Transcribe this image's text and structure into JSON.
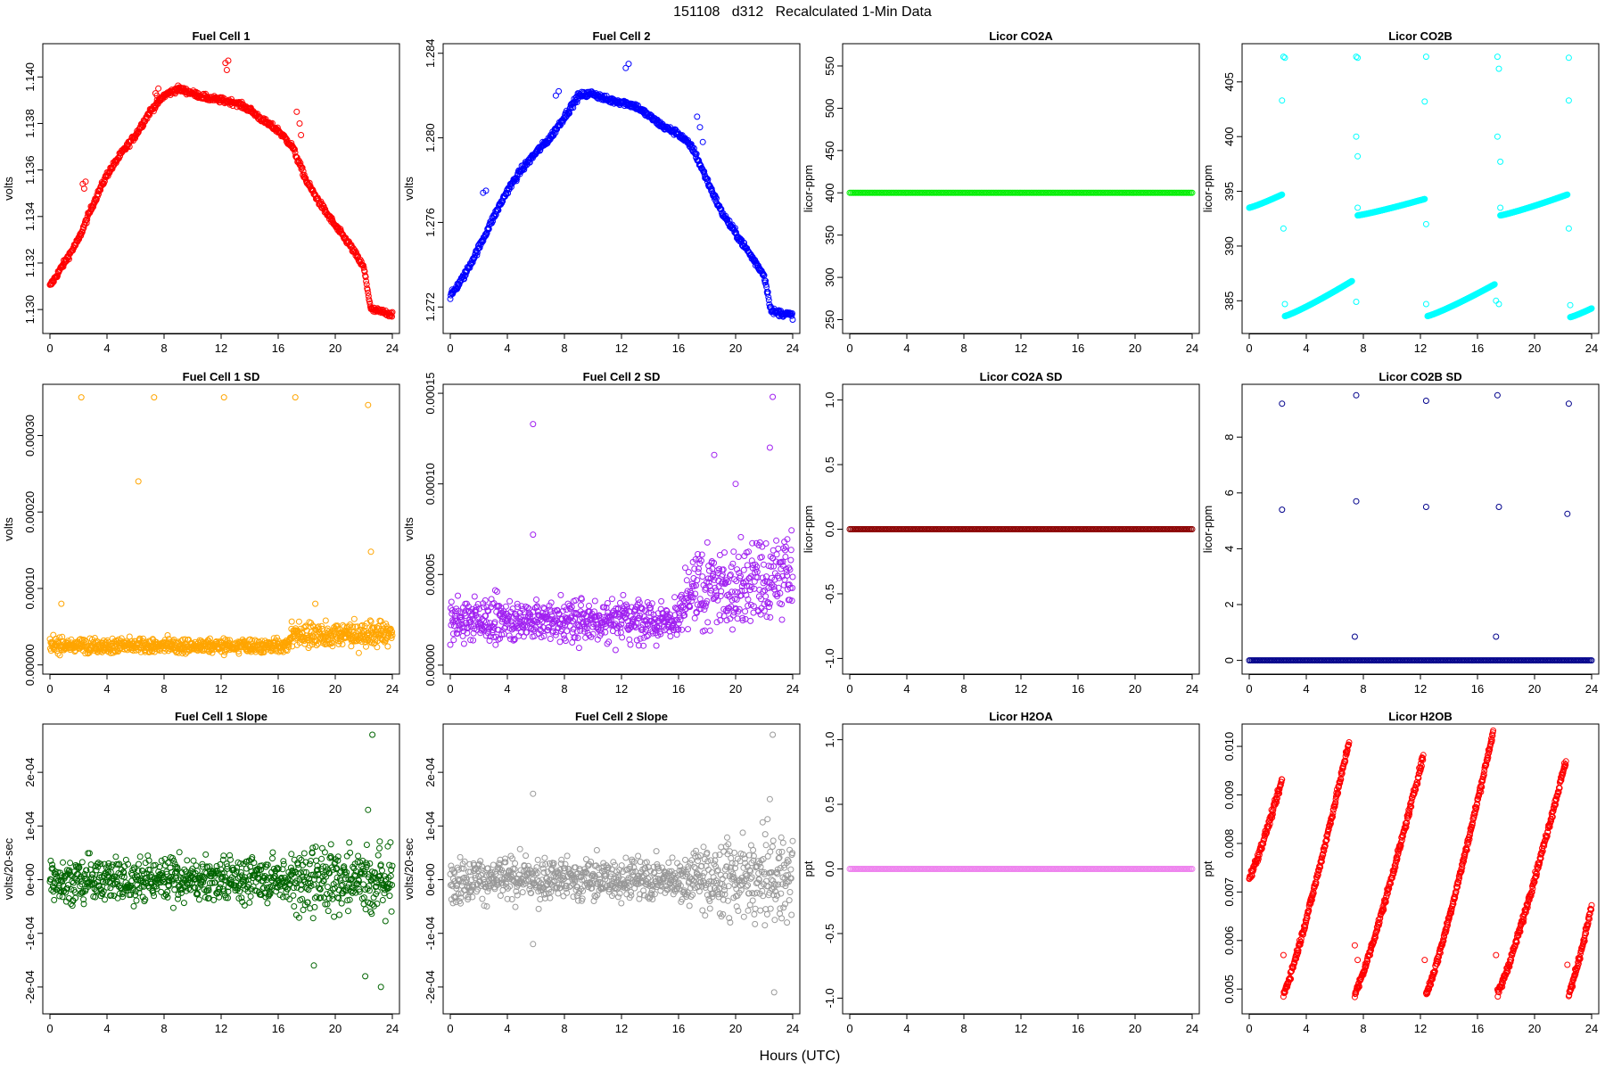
{
  "figure": {
    "title": "151108   d312   Recalculated 1-Min Data",
    "xlabel": "Hours (UTC)"
  },
  "chart_data": [
    {
      "id": "fc1",
      "type": "scatter",
      "title": "Fuel Cell 1",
      "ylabel": "volts",
      "color": "#ff0000",
      "xlim": [
        0,
        24
      ],
      "ylim": [
        1.1292,
        1.1412
      ],
      "xticks": [
        0,
        4,
        8,
        12,
        16,
        20,
        24
      ],
      "yticks": [
        1.13,
        1.132,
        1.134,
        1.136,
        1.138,
        1.14
      ],
      "yticklabels": [
        "1.130",
        "1.132",
        "1.134",
        "1.136",
        "1.138",
        "1.140"
      ],
      "curve": [
        [
          0,
          1.131
        ],
        [
          1,
          1.132
        ],
        [
          2,
          1.133
        ],
        [
          3,
          1.1345
        ],
        [
          4,
          1.1358
        ],
        [
          5,
          1.1367
        ],
        [
          6,
          1.1375
        ],
        [
          7,
          1.1385
        ],
        [
          8,
          1.1392
        ],
        [
          9,
          1.1395
        ],
        [
          10,
          1.1393
        ],
        [
          11,
          1.1391
        ],
        [
          12,
          1.139
        ],
        [
          13,
          1.1389
        ],
        [
          14,
          1.1386
        ],
        [
          15,
          1.1381
        ],
        [
          16,
          1.1377
        ],
        [
          17,
          1.137
        ],
        [
          18,
          1.1355
        ],
        [
          19,
          1.1345
        ],
        [
          20,
          1.1336
        ],
        [
          21,
          1.1328
        ],
        [
          22,
          1.1318
        ],
        [
          22.5,
          1.13
        ],
        [
          24,
          1.1298
        ]
      ],
      "spread": 0.00025,
      "extras": [
        [
          2.3,
          1.1354
        ],
        [
          2.5,
          1.1355
        ],
        [
          2.4,
          1.1352
        ],
        [
          7.4,
          1.1393
        ],
        [
          7.6,
          1.1395
        ],
        [
          7.5,
          1.1392
        ],
        [
          12.3,
          1.1406
        ],
        [
          12.5,
          1.1407
        ],
        [
          12.4,
          1.1403
        ],
        [
          17.3,
          1.1385
        ],
        [
          17.5,
          1.138
        ],
        [
          17.6,
          1.1375
        ]
      ]
    },
    {
      "id": "fc2",
      "type": "scatter",
      "title": "Fuel Cell 2",
      "ylabel": "volts",
      "color": "#0000ff",
      "xlim": [
        0,
        24
      ],
      "ylim": [
        1.271,
        1.2842
      ],
      "xticks": [
        0,
        4,
        8,
        12,
        16,
        20,
        24
      ],
      "yticks": [
        1.272,
        1.276,
        1.28,
        1.284
      ],
      "yticklabels": [
        "1.272",
        "1.276",
        "1.280",
        "1.284"
      ],
      "curve": [
        [
          0,
          1.2725
        ],
        [
          1,
          1.2735
        ],
        [
          2,
          1.2748
        ],
        [
          3,
          1.2762
        ],
        [
          4,
          1.2775
        ],
        [
          5,
          1.2785
        ],
        [
          6,
          1.2793
        ],
        [
          7,
          1.28
        ],
        [
          8,
          1.281
        ],
        [
          9,
          1.282
        ],
        [
          10,
          1.2821
        ],
        [
          11,
          1.2818
        ],
        [
          12,
          1.2817
        ],
        [
          13,
          1.2815
        ],
        [
          14,
          1.281
        ],
        [
          15,
          1.2805
        ],
        [
          16,
          1.2802
        ],
        [
          17,
          1.2795
        ],
        [
          18,
          1.278
        ],
        [
          19,
          1.2765
        ],
        [
          20,
          1.2755
        ],
        [
          21,
          1.2745
        ],
        [
          22,
          1.2735
        ],
        [
          22.5,
          1.2718
        ],
        [
          24,
          1.2716
        ]
      ],
      "spread": 0.0003,
      "extras": [
        [
          2.3,
          1.2774
        ],
        [
          2.5,
          1.2775
        ],
        [
          7.4,
          1.282
        ],
        [
          7.6,
          1.2822
        ],
        [
          12.3,
          1.2833
        ],
        [
          12.5,
          1.2835
        ],
        [
          17.3,
          1.281
        ],
        [
          17.5,
          1.2805
        ],
        [
          17.7,
          1.2798
        ]
      ]
    },
    {
      "id": "co2a",
      "type": "scatter",
      "title": "Licor CO2A",
      "ylabel": "licor-ppm",
      "color": "#00ee00",
      "xlim": [
        0,
        24
      ],
      "ylim": [
        240,
        570
      ],
      "xticks": [
        0,
        4,
        8,
        12,
        16,
        20,
        24
      ],
      "yticks": [
        250,
        300,
        350,
        400,
        450,
        500,
        550
      ],
      "yticklabels": [
        "250",
        "300",
        "350",
        "400",
        "450",
        "500",
        "550"
      ],
      "constant": 400
    },
    {
      "id": "co2b",
      "type": "scatter",
      "title": "Licor CO2B",
      "ylabel": "licor-ppm",
      "color": "#00ffff",
      "xlim": [
        0,
        24
      ],
      "ylim": [
        382.5,
        408
      ],
      "xticks": [
        0,
        4,
        8,
        12,
        16,
        20,
        24
      ],
      "yticks": [
        385,
        390,
        395,
        400,
        405
      ],
      "yticklabels": [
        "385",
        "390",
        "395",
        "400",
        "405"
      ],
      "segments": [
        [
          0,
          393.5,
          2.3,
          394.7
        ],
        [
          2.5,
          383.6,
          7.2,
          386.8
        ],
        [
          7.6,
          392.8,
          12.3,
          394.3
        ],
        [
          12.5,
          383.6,
          17.2,
          386.5
        ],
        [
          17.6,
          392.8,
          22.3,
          394.7
        ],
        [
          22.5,
          383.5,
          24,
          384.3
        ]
      ],
      "extras": [
        [
          2.4,
          407.3
        ],
        [
          2.5,
          407.2
        ],
        [
          2.3,
          403.3
        ],
        [
          2.4,
          391.6
        ],
        [
          2.5,
          384.7
        ],
        [
          7.5,
          407.3
        ],
        [
          7.6,
          407.2
        ],
        [
          7.5,
          400.0
        ],
        [
          7.6,
          398.2
        ],
        [
          7.6,
          393.5
        ],
        [
          7.5,
          384.9
        ],
        [
          12.4,
          407.3
        ],
        [
          12.3,
          403.2
        ],
        [
          12.4,
          392.0
        ],
        [
          12.4,
          384.7
        ],
        [
          17.4,
          407.3
        ],
        [
          17.5,
          406.2
        ],
        [
          17.4,
          400.0
        ],
        [
          17.6,
          397.7
        ],
        [
          17.6,
          393.5
        ],
        [
          17.3,
          385.0
        ],
        [
          17.5,
          384.7
        ],
        [
          22.4,
          407.2
        ],
        [
          22.4,
          403.3
        ],
        [
          22.4,
          391.6
        ],
        [
          22.5,
          384.6
        ]
      ]
    },
    {
      "id": "fc1sd",
      "type": "scatter",
      "title": "Fuel Cell 1 SD",
      "ylabel": "volts",
      "color": "#ffa500",
      "xlim": [
        0,
        24
      ],
      "ylim": [
        -5e-06,
        0.00036
      ],
      "xticks": [
        0,
        4,
        8,
        12,
        16,
        20,
        24
      ],
      "yticks": [
        0,
        0.0001,
        0.0002,
        0.0003
      ],
      "yticklabels": [
        "0.00000",
        "0.00010",
        "0.00020",
        "0.00030"
      ],
      "noise": [
        [
          0,
          2.5e-05,
          1.2e-05
        ],
        [
          16.5,
          2.5e-05,
          1.2e-05
        ],
        [
          17,
          4e-05,
          2e-05
        ],
        [
          24,
          4e-05,
          2e-05
        ]
      ],
      "extras": [
        [
          2.2,
          0.00035
        ],
        [
          7.3,
          0.00035
        ],
        [
          12.2,
          0.00035
        ],
        [
          17.2,
          0.00035
        ],
        [
          22.3,
          0.00034
        ],
        [
          6.2,
          0.00024
        ],
        [
          22.5,
          0.000148
        ],
        [
          0.8,
          8e-05
        ],
        [
          18.6,
          8e-05
        ]
      ]
    },
    {
      "id": "fc2sd",
      "type": "scatter",
      "title": "Fuel Cell 2 SD",
      "ylabel": "volts",
      "color": "#a020f0",
      "xlim": [
        0,
        24
      ],
      "ylim": [
        -2e-06,
        0.000152
      ],
      "xticks": [
        0,
        4,
        8,
        12,
        16,
        20,
        24
      ],
      "yticks": [
        0,
        5e-05,
        0.0001,
        0.00015
      ],
      "yticklabels": [
        "0.00000",
        "0.00005",
        "0.00010",
        "0.00015"
      ],
      "noise": [
        [
          0,
          2.5e-05,
          1.5e-05
        ],
        [
          16,
          2.5e-05,
          1.5e-05
        ],
        [
          17,
          4e-05,
          2.5e-05
        ],
        [
          24,
          5e-05,
          3e-05
        ]
      ],
      "extras": [
        [
          5.8,
          0.000133
        ],
        [
          5.8,
          7.2e-05
        ],
        [
          22.6,
          0.000148
        ],
        [
          22.4,
          0.00012
        ],
        [
          18.5,
          0.000116
        ],
        [
          20,
          0.0001
        ]
      ]
    },
    {
      "id": "co2asd",
      "type": "scatter",
      "title": "Licor CO2A SD",
      "ylabel": "licor-ppm",
      "color": "#8b0000",
      "xlim": [
        0,
        24
      ],
      "ylim": [
        -1.08,
        1.08
      ],
      "xticks": [
        0,
        4,
        8,
        12,
        16,
        20,
        24
      ],
      "yticks": [
        -1.0,
        -0.5,
        0.0,
        0.5,
        1.0
      ],
      "yticklabels": [
        "-1.0",
        "-0.5",
        "0.0",
        "0.5",
        "1.0"
      ],
      "constant": 0
    },
    {
      "id": "co2bsd",
      "type": "scatter",
      "title": "Licor CO2B SD",
      "ylabel": "licor-ppm",
      "color": "#00008b",
      "xlim": [
        0,
        24
      ],
      "ylim": [
        -0.3,
        9.7
      ],
      "xticks": [
        0,
        4,
        8,
        12,
        16,
        20,
        24
      ],
      "yticks": [
        0,
        2,
        4,
        6,
        8
      ],
      "yticklabels": [
        "0",
        "2",
        "4",
        "6",
        "8"
      ],
      "constant": 0,
      "extras": [
        [
          2.3,
          9.2
        ],
        [
          2.3,
          5.4
        ],
        [
          7.5,
          9.5
        ],
        [
          7.5,
          5.7
        ],
        [
          7.4,
          0.85
        ],
        [
          12.4,
          9.3
        ],
        [
          12.4,
          5.5
        ],
        [
          17.4,
          9.5
        ],
        [
          17.5,
          5.5
        ],
        [
          17.3,
          0.85
        ],
        [
          22.4,
          9.2
        ],
        [
          22.3,
          5.25
        ]
      ]
    },
    {
      "id": "fc1slope",
      "type": "scatter",
      "title": "Fuel Cell 1 Slope",
      "ylabel": "volts/20-sec",
      "color": "#006400",
      "xlim": [
        0,
        24
      ],
      "ylim": [
        -0.00024,
        0.00028
      ],
      "xticks": [
        0,
        4,
        8,
        12,
        16,
        20,
        24
      ],
      "yticks": [
        -0.0002,
        -0.0001,
        0,
        0.0001,
        0.0002
      ],
      "yticklabels": [
        "-2e-04",
        "-1e-04",
        "0e+00",
        "1e-04",
        "2e-04"
      ],
      "noise": [
        [
          0,
          0.0,
          4e-05
        ],
        [
          16.5,
          0.0,
          4e-05
        ],
        [
          17,
          0.0,
          6e-05
        ],
        [
          24,
          0.0,
          7e-05
        ]
      ],
      "extras": [
        [
          22.6,
          0.00027
        ],
        [
          22.3,
          0.00013
        ],
        [
          22.1,
          -0.00018
        ],
        [
          23.2,
          -0.0002
        ],
        [
          18.5,
          -0.00016
        ]
      ]
    },
    {
      "id": "fc2slope",
      "type": "scatter",
      "title": "Fuel Cell 2 Slope",
      "ylabel": "volts/20-sec",
      "color": "#999999",
      "xlim": [
        0,
        24
      ],
      "ylim": [
        -0.00024,
        0.00028
      ],
      "xticks": [
        0,
        4,
        8,
        12,
        16,
        20,
        24
      ],
      "yticks": [
        -0.0002,
        -0.0001,
        0,
        0.0001,
        0.0002
      ],
      "yticklabels": [
        "-2e-04",
        "-1e-04",
        "0e+00",
        "1e-04",
        "2e-04"
      ],
      "noise": [
        [
          0,
          0.0,
          4e-05
        ],
        [
          16.5,
          0.0,
          4e-05
        ],
        [
          17,
          0.0,
          6e-05
        ],
        [
          24,
          0.0,
          8e-05
        ]
      ],
      "extras": [
        [
          22.6,
          0.00027
        ],
        [
          5.8,
          0.00016
        ],
        [
          5.8,
          -0.00012
        ],
        [
          22.7,
          -0.00021
        ],
        [
          22.4,
          0.00015
        ]
      ]
    },
    {
      "id": "h2oa",
      "type": "scatter",
      "title": "Licor H2OA",
      "ylabel": "ppt",
      "color": "#ee82ee",
      "xlim": [
        0,
        24
      ],
      "ylim": [
        -1.08,
        1.08
      ],
      "xticks": [
        0,
        4,
        8,
        12,
        16,
        20,
        24
      ],
      "yticks": [
        -1.0,
        -0.5,
        0.0,
        0.5,
        1.0
      ],
      "yticklabels": [
        "-1.0",
        "-0.5",
        "0.0",
        "0.5",
        "1.0"
      ],
      "constant": 0
    },
    {
      "id": "h2ob",
      "type": "scatter",
      "title": "Licor H2OB",
      "ylabel": "ppt",
      "color": "#ff0000",
      "xlim": [
        0,
        24
      ],
      "ylim": [
        0.0046,
        0.01035
      ],
      "xticks": [
        0,
        4,
        8,
        12,
        16,
        20,
        24
      ],
      "yticks": [
        0.005,
        0.006,
        0.007,
        0.008,
        0.009,
        0.01
      ],
      "yticklabels": [
        "0.005",
        "0.006",
        "0.007",
        "0.008",
        "0.009",
        "0.010"
      ],
      "segments": [
        [
          0,
          0.0073,
          2.3,
          0.0093
        ],
        [
          2.4,
          0.0049,
          7.0,
          0.0101
        ],
        [
          7.4,
          0.0049,
          12.2,
          0.0098
        ],
        [
          12.4,
          0.0049,
          17.1,
          0.0103
        ],
        [
          17.4,
          0.0049,
          22.2,
          0.0097
        ],
        [
          22.4,
          0.0049,
          24,
          0.0067
        ]
      ],
      "spread": 8e-05,
      "extras": [
        [
          2.4,
          0.0057
        ],
        [
          7.4,
          0.0059
        ],
        [
          7.6,
          0.0056
        ],
        [
          12.3,
          0.0056
        ],
        [
          17.3,
          0.0057
        ],
        [
          22.3,
          0.0055
        ]
      ]
    }
  ]
}
